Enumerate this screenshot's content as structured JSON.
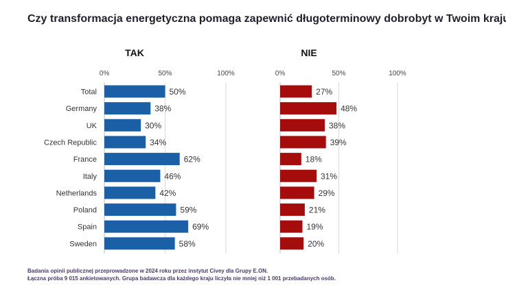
{
  "title": "Czy transformacja energetyczna pomaga zapewnić długoterminowy dobrobyt w Twoim kraju?",
  "footer": {
    "line1": "Badania opinii publicznej przeprowadzone w 2024 roku przez instytut Civey dla Grupy E.ON.",
    "line2": "Łączna próba 9 015 ankietowanych. Grupa badawcza dla każdego kraju liczyła nie mniej niż 1 001 przebadanych osób."
  },
  "chart_data": {
    "type": "bar",
    "orientation": "horizontal",
    "categories": [
      "Total",
      "Germany",
      "UK",
      "Czech Republic",
      "France",
      "Italy",
      "Netherlands",
      "Poland",
      "Spain",
      "Sweden"
    ],
    "xlim": [
      0,
      100
    ],
    "ticks": [
      0,
      50,
      100
    ],
    "tick_labels": [
      "0%",
      "50%",
      "100%"
    ],
    "value_suffix": "%",
    "series": [
      {
        "name": "TAK",
        "color": "#1b5fa6",
        "values": [
          50,
          38,
          30,
          34,
          62,
          46,
          42,
          59,
          69,
          58
        ]
      },
      {
        "name": "NIE",
        "color": "#a50d0d",
        "values": [
          27,
          48,
          38,
          39,
          18,
          31,
          29,
          21,
          19,
          20
        ]
      }
    ]
  }
}
